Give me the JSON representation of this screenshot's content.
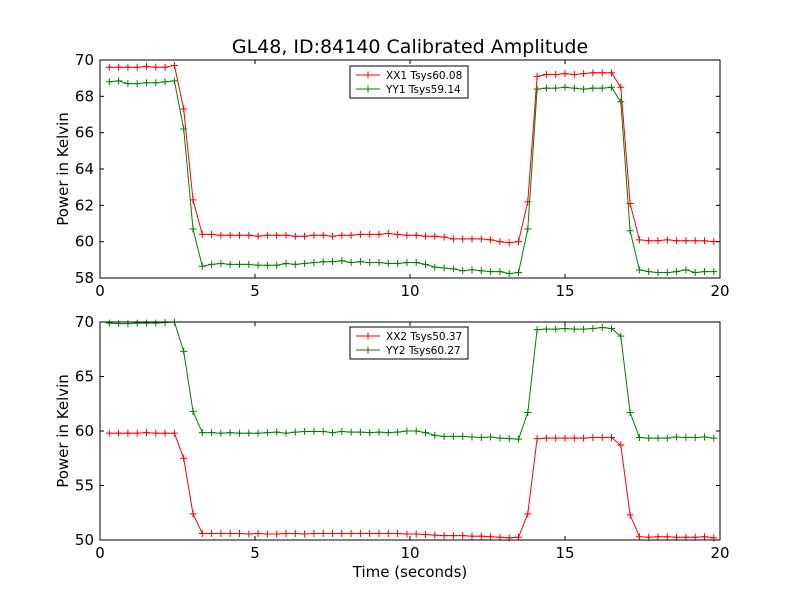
{
  "figure": {
    "title": "GL48, ID:84140 Calibrated Amplitude"
  },
  "chart_data": [
    {
      "type": "line",
      "title": "GL48, ID:84140 Calibrated Amplitude",
      "xlabel": "",
      "ylabel": "Power in Kelvin",
      "xlim": [
        0,
        20
      ],
      "ylim": [
        58,
        70
      ],
      "xticks": [
        0,
        5,
        10,
        15,
        20
      ],
      "yticks": [
        58,
        60,
        62,
        64,
        66,
        68,
        70
      ],
      "legend": "top-center",
      "grid": false,
      "x": [
        0.3,
        0.6,
        0.9,
        1.2,
        1.5,
        1.8,
        2.1,
        2.4,
        2.7,
        3.0,
        3.3,
        3.6,
        3.9,
        4.2,
        4.5,
        4.8,
        5.1,
        5.4,
        5.7,
        6.0,
        6.3,
        6.6,
        6.9,
        7.2,
        7.5,
        7.8,
        8.1,
        8.4,
        8.7,
        9.0,
        9.3,
        9.6,
        9.9,
        10.2,
        10.5,
        10.8,
        11.1,
        11.4,
        11.7,
        12.0,
        12.3,
        12.6,
        12.9,
        13.2,
        13.5,
        13.8,
        14.1,
        14.4,
        14.7,
        15.0,
        15.3,
        15.6,
        15.9,
        16.2,
        16.5,
        16.8,
        17.1,
        17.4,
        17.7,
        18.0,
        18.3,
        18.6,
        18.9,
        19.2,
        19.5,
        19.8
      ],
      "series": [
        {
          "name": "XX1 Tsys60.08",
          "color": "#ff0000",
          "values": [
            69.6,
            69.6,
            69.6,
            69.6,
            69.65,
            69.6,
            69.6,
            69.7,
            67.3,
            62.3,
            60.4,
            60.4,
            60.35,
            60.35,
            60.35,
            60.35,
            60.3,
            60.35,
            60.35,
            60.35,
            60.3,
            60.3,
            60.35,
            60.35,
            60.3,
            60.35,
            60.35,
            60.4,
            60.4,
            60.4,
            60.45,
            60.4,
            60.35,
            60.35,
            60.3,
            60.3,
            60.25,
            60.15,
            60.15,
            60.15,
            60.15,
            60.1,
            60.0,
            59.95,
            60.0,
            62.2,
            69.1,
            69.2,
            69.2,
            69.25,
            69.2,
            69.25,
            69.3,
            69.3,
            69.3,
            68.5,
            62.1,
            60.1,
            60.05,
            60.05,
            60.1,
            60.05,
            60.05,
            60.05,
            60.05,
            60.0
          ]
        },
        {
          "name": "YY1 Tsys59.14",
          "color": "#008000",
          "values": [
            68.8,
            68.85,
            68.7,
            68.7,
            68.75,
            68.75,
            68.8,
            68.85,
            66.2,
            60.7,
            58.65,
            58.75,
            58.8,
            58.75,
            58.75,
            58.75,
            58.7,
            58.7,
            58.7,
            58.8,
            58.75,
            58.8,
            58.85,
            58.9,
            58.9,
            58.95,
            58.85,
            58.9,
            58.85,
            58.85,
            58.8,
            58.8,
            58.85,
            58.85,
            58.75,
            58.6,
            58.55,
            58.5,
            58.4,
            58.45,
            58.4,
            58.35,
            58.35,
            58.25,
            58.3,
            60.7,
            68.4,
            68.45,
            68.45,
            68.5,
            68.45,
            68.4,
            68.45,
            68.45,
            68.5,
            67.7,
            60.6,
            58.45,
            58.35,
            58.3,
            58.3,
            58.35,
            58.45,
            58.3,
            58.35,
            58.35
          ]
        }
      ]
    },
    {
      "type": "line",
      "title": "",
      "xlabel": "Time (seconds)",
      "ylabel": "Power in Kelvin",
      "xlim": [
        0,
        20
      ],
      "ylim": [
        50,
        70
      ],
      "xticks": [
        0,
        5,
        10,
        15,
        20
      ],
      "yticks": [
        50,
        55,
        60,
        65,
        70
      ],
      "legend": "top-center",
      "grid": false,
      "x": [
        0.3,
        0.6,
        0.9,
        1.2,
        1.5,
        1.8,
        2.1,
        2.4,
        2.7,
        3.0,
        3.3,
        3.6,
        3.9,
        4.2,
        4.5,
        4.8,
        5.1,
        5.4,
        5.7,
        6.0,
        6.3,
        6.6,
        6.9,
        7.2,
        7.5,
        7.8,
        8.1,
        8.4,
        8.7,
        9.0,
        9.3,
        9.6,
        9.9,
        10.2,
        10.5,
        10.8,
        11.1,
        11.4,
        11.7,
        12.0,
        12.3,
        12.6,
        12.9,
        13.2,
        13.5,
        13.8,
        14.1,
        14.4,
        14.7,
        15.0,
        15.3,
        15.6,
        15.9,
        16.2,
        16.5,
        16.8,
        17.1,
        17.4,
        17.7,
        18.0,
        18.3,
        18.6,
        18.9,
        19.2,
        19.5,
        19.8
      ],
      "series": [
        {
          "name": "XX2 Tsys50.37",
          "color": "#ff0000",
          "values": [
            59.8,
            59.8,
            59.8,
            59.8,
            59.85,
            59.8,
            59.8,
            59.8,
            57.5,
            52.4,
            50.6,
            50.6,
            50.6,
            50.6,
            50.6,
            50.55,
            50.6,
            50.55,
            50.55,
            50.6,
            50.6,
            50.55,
            50.6,
            50.6,
            50.6,
            50.6,
            50.6,
            50.6,
            50.6,
            50.6,
            50.6,
            50.6,
            50.55,
            50.55,
            50.5,
            50.45,
            50.4,
            50.4,
            50.4,
            50.35,
            50.35,
            50.3,
            50.25,
            50.2,
            50.25,
            52.4,
            59.3,
            59.35,
            59.35,
            59.35,
            59.35,
            59.35,
            59.4,
            59.4,
            59.4,
            58.7,
            52.3,
            50.3,
            50.25,
            50.3,
            50.3,
            50.25,
            50.25,
            50.25,
            50.3,
            50.2
          ]
        },
        {
          "name": "YY2 Tsys60.27",
          "color": "#008000",
          "values": [
            69.9,
            69.85,
            69.85,
            69.9,
            69.9,
            69.9,
            69.95,
            70.0,
            67.3,
            61.8,
            59.85,
            59.85,
            59.8,
            59.85,
            59.8,
            59.8,
            59.8,
            59.85,
            59.9,
            59.8,
            59.9,
            59.95,
            59.95,
            59.95,
            59.85,
            59.95,
            59.9,
            59.9,
            59.85,
            59.9,
            59.85,
            59.9,
            60.0,
            60.0,
            59.85,
            59.6,
            59.5,
            59.5,
            59.5,
            59.45,
            59.4,
            59.45,
            59.35,
            59.3,
            59.25,
            61.7,
            69.3,
            69.35,
            69.35,
            69.4,
            69.35,
            69.35,
            69.4,
            69.5,
            69.4,
            68.7,
            61.7,
            59.4,
            59.35,
            59.35,
            59.35,
            59.45,
            59.4,
            59.4,
            59.45,
            59.35
          ]
        }
      ]
    }
  ]
}
